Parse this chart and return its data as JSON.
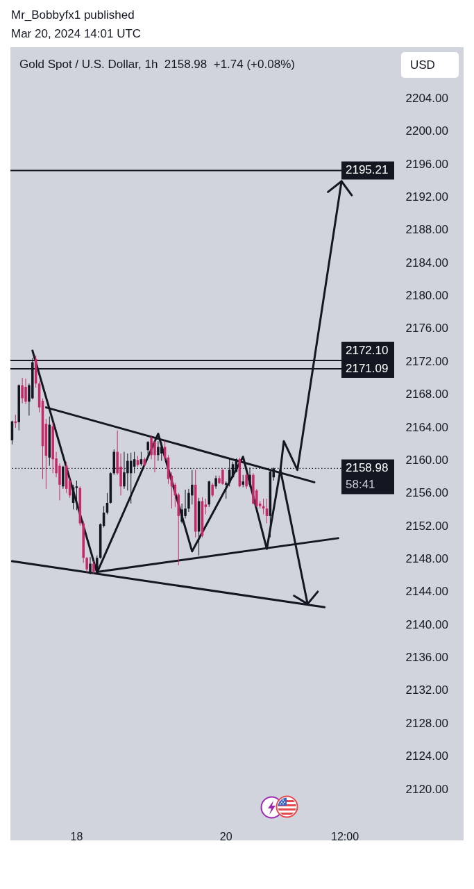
{
  "chart_data": {
    "type": "candlestick",
    "title": "Gold Spot / U.S. Dollar, 1h  2158.98  +1.74 (+0.08%)",
    "ylabel": "USD",
    "annotations": [
      "Mr_Bobbyfx1 published",
      "Mar 20, 2024 14:01 UTC",
      {
        "text": "58:41",
        "y": 2158.98
      }
    ],
    "categories": [
      null,
      null,
      null,
      null,
      null,
      null,
      null,
      null,
      null,
      null,
      null,
      null,
      null,
      null,
      null,
      null,
      null,
      null,
      null,
      "18",
      null,
      null,
      null,
      null,
      null,
      null,
      null,
      null,
      null,
      null,
      null,
      null,
      null,
      null,
      null,
      null,
      null,
      null,
      null,
      null,
      null,
      null,
      null,
      null,
      null,
      null,
      null,
      null,
      null,
      null,
      null,
      null,
      null,
      null,
      null,
      null,
      null,
      null,
      null,
      null,
      null,
      null,
      null,
      "20",
      null,
      null,
      null,
      null,
      null,
      null,
      null,
      null,
      null,
      null,
      null,
      null,
      null,
      null,
      null,
      null,
      null,
      null,
      null,
      null,
      null,
      null,
      null,
      null,
      null,
      null,
      null,
      null,
      null,
      null,
      null,
      null,
      null,
      null,
      "12:00",
      null,
      null,
      null,
      null,
      null,
      null,
      null,
      null,
      null,
      null,
      null,
      null,
      null,
      null
    ],
    "ohlc": [
      [
        2162.4,
        2164.8,
        2161.9,
        2164.7
      ],
      [
        2164.7,
        2165.5,
        2163.9,
        2164.5
      ],
      [
        2164.6,
        2169.2,
        2163.6,
        2169.1
      ],
      [
        2169.1,
        2170.0,
        2166.9,
        2167.5
      ],
      [
        2168.9,
        2169.9,
        2166.8,
        2167.1
      ],
      [
        2167.1,
        2169.3,
        2165.4,
        2169.1
      ],
      [
        2167.5,
        2172.4,
        2167.4,
        2171.9
      ],
      [
        2172.3,
        2172.7,
        2168.8,
        2169.3
      ],
      [
        2169.3,
        2169.6,
        2165.8,
        2166.4
      ],
      [
        2167.2,
        2167.5,
        2157.7,
        2161.7
      ],
      [
        2164.4,
        2165.0,
        2156.5,
        2160.5
      ],
      [
        2160.3,
        2165.3,
        2159.3,
        2164.3
      ],
      [
        2164.1,
        2164.6,
        2158.4,
        2160.1
      ],
      [
        2160.2,
        2161.0,
        2157.9,
        2158.4
      ],
      [
        2159.3,
        2159.6,
        2155.1,
        2157.0
      ],
      [
        2156.8,
        2159.3,
        2156.5,
        2159.2
      ],
      [
        2159.3,
        2159.8,
        2156.0,
        2156.5
      ],
      [
        2157.5,
        2157.9,
        2155.4,
        2155.7
      ],
      [
        2154.8,
        2157.0,
        2154.0,
        2156.7
      ],
      [
        2156.6,
        2157.5,
        2153.9,
        2156.8
      ],
      [
        2156.6,
        2156.8,
        2152.0,
        2152.3
      ],
      [
        2152.3,
        2152.6,
        2147.5,
        2148.1
      ],
      [
        2148.1,
        2148.2,
        2146.3,
        2146.7
      ],
      [
        2146.4,
        2148.2,
        2146.1,
        2147.4
      ],
      [
        2147.4,
        2147.7,
        2146.1,
        2146.4
      ],
      [
        2146.4,
        2148.4,
        2146.1,
        2148.1
      ],
      [
        2148.1,
        2152.3,
        2148.0,
        2152.2
      ],
      [
        2152.0,
        2154.4,
        2151.8,
        2153.6
      ],
      [
        2153.6,
        2156.0,
        2153.4,
        2154.8
      ],
      [
        2154.8,
        2158.5,
        2154.7,
        2158.4
      ],
      [
        2158.4,
        2161.3,
        2158.2,
        2161.0
      ],
      [
        2161.0,
        2163.6,
        2158.2,
        2158.4
      ],
      [
        2159.2,
        2160.8,
        2155.7,
        2156.8
      ],
      [
        2156.8,
        2161.0,
        2156.5,
        2158.5
      ],
      [
        2158.4,
        2160.8,
        2156.3,
        2159.9
      ],
      [
        2158.4,
        2160.9,
        2154.7,
        2159.9
      ],
      [
        2159.2,
        2161.0,
        2158.4,
        2160.1
      ],
      [
        2160.0,
        2160.5,
        2159.2,
        2159.4
      ],
      [
        2159.5,
        2161.0,
        2159.3,
        2160.1
      ],
      [
        2160.1,
        2160.3,
        2159.2,
        2159.4
      ],
      [
        2161.2,
        2162.3,
        2160.2,
        2162.2
      ],
      [
        2162.7,
        2163.0,
        2160.1,
        2160.6
      ],
      [
        2162.2,
        2162.4,
        2158.5,
        2160.6
      ],
      [
        2160.6,
        2162.3,
        2159.9,
        2161.6
      ],
      [
        2160.8,
        2162.2,
        2159.9,
        2161.6
      ],
      [
        2161.6,
        2162.3,
        2159.9,
        2160.2
      ],
      [
        2160.3,
        2160.6,
        2157.1,
        2157.7
      ],
      [
        2158.1,
        2158.5,
        2154.1,
        2156.8
      ],
      [
        2157.0,
        2157.2,
        2154.3,
        2155.7
      ],
      [
        2155.8,
        2156.0,
        2147.2,
        2153.2
      ],
      [
        2152.5,
        2154.7,
        2152.3,
        2154.0
      ],
      [
        2153.2,
        2156.4,
        2152.9,
        2154.1
      ],
      [
        2154.1,
        2156.5,
        2153.7,
        2156.0
      ],
      [
        2155.7,
        2158.8,
        2154.6,
        2157.0
      ],
      [
        2157.0,
        2158.8,
        2150.6,
        2151.3
      ],
      [
        2151.3,
        2155.4,
        2148.4,
        2155.0
      ],
      [
        2155.0,
        2155.5,
        2150.6,
        2150.8
      ],
      [
        2154.6,
        2155.3,
        2153.4,
        2154.3
      ],
      [
        2154.6,
        2157.5,
        2154.3,
        2157.4
      ],
      [
        2157.0,
        2157.2,
        2155.5,
        2155.7
      ],
      [
        2156.8,
        2158.1,
        2156.5,
        2157.8
      ],
      [
        2157.8,
        2158.1,
        2157.1,
        2157.2
      ],
      [
        2158.8,
        2158.9,
        2157.0,
        2157.1
      ],
      [
        2157.0,
        2157.4,
        2155.3,
        2157.2
      ],
      [
        2157.2,
        2160.1,
        2156.8,
        2158.8
      ],
      [
        2157.9,
        2159.8,
        2157.8,
        2159.5
      ],
      [
        2158.6,
        2160.2,
        2158.5,
        2160.1
      ],
      [
        2160.1,
        2160.3,
        2156.7,
        2156.8
      ],
      [
        2157.0,
        2158.2,
        2156.7,
        2157.4
      ],
      [
        2158.2,
        2158.4,
        2156.5,
        2156.8
      ],
      [
        2157.0,
        2159.1,
        2156.7,
        2158.2
      ],
      [
        2158.2,
        2158.4,
        2154.6,
        2154.7
      ],
      [
        2156.3,
        2156.5,
        2154.3,
        2154.4
      ],
      [
        2154.7,
        2155.0,
        2154.1,
        2154.4
      ],
      [
        2154.4,
        2155.3,
        2153.4,
        2154.1
      ],
      [
        2154.1,
        2155.3,
        2152.3,
        2153.2
      ],
      [
        2153.2,
        2158.9,
        2150.6,
        2158.6
      ],
      [
        2157.9,
        2159.1,
        2157.5,
        2158.98
      ],
      null,
      null,
      null,
      null,
      null,
      null,
      null,
      null,
      null,
      null,
      null,
      null,
      null,
      null,
      null,
      null,
      null,
      null,
      null,
      null,
      null,
      null,
      null,
      null,
      null,
      null,
      null,
      null,
      null,
      null,
      null,
      null,
      null,
      null,
      null
    ],
    "colors": [
      "#131722",
      "#c52a67",
      "#131722",
      "#c52a67",
      "#c52a67",
      "#131722",
      "#131722",
      "#c52a67",
      "#c52a67",
      "#c52a67",
      "#c52a67",
      "#131722",
      "#c52a67",
      "#c52a67",
      "#c52a67",
      "#131722",
      "#c52a67",
      "#c52a67",
      "#131722",
      "#131722",
      "#c52a67",
      "#c52a67",
      "#c52a67",
      "#131722",
      "#c52a67",
      "#131722",
      "#131722",
      "#131722",
      "#131722",
      "#131722",
      "#131722",
      "#c52a67",
      "#c52a67",
      "#131722",
      "#131722",
      "#131722",
      "#131722",
      "#c52a67",
      "#131722",
      "#c52a67",
      "#131722",
      "#c52a67",
      "#c52a67",
      "#131722",
      "#131722",
      "#c52a67",
      "#c52a67",
      "#c52a67",
      "#c52a67",
      "#c52a67",
      "#131722",
      "#131722",
      "#131722",
      "#131722",
      "#c52a67",
      "#131722",
      "#c52a67",
      "#c52a67",
      "#131722",
      "#c52a67",
      "#131722",
      "#c52a67",
      "#c52a67",
      "#131722",
      "#131722",
      "#131722",
      "#131722",
      "#c52a67",
      "#131722",
      "#c52a67",
      "#131722",
      "#c52a67",
      "#c52a67",
      "#c52a67",
      "#c52a67",
      "#c52a67",
      "#131722",
      "#131722",
      null,
      null,
      null,
      null,
      null,
      null,
      null,
      null,
      null,
      null,
      null,
      null,
      null,
      null,
      null,
      null,
      null,
      null,
      null,
      null,
      null,
      null,
      null,
      null,
      null,
      null,
      null,
      null,
      null,
      null,
      null,
      null,
      null,
      null,
      null
    ],
    "series": [
      {
        "type": "line",
        "color": "#131722",
        "values": [
          null,
          null,
          null,
          null,
          null,
          null,
          null,
          null,
          null,
          null,
          2166.4,
          null,
          null,
          null,
          null,
          null,
          null,
          null,
          null,
          null,
          null,
          null,
          null,
          null,
          null,
          null,
          null,
          null,
          null,
          null,
          null,
          null,
          null,
          null,
          null,
          null,
          null,
          null,
          null,
          null,
          null,
          null,
          null,
          null,
          null,
          null,
          null,
          null,
          null,
          null,
          null,
          null,
          null,
          null,
          null,
          null,
          null,
          null,
          null,
          null,
          null,
          null,
          null,
          null,
          null,
          null,
          null,
          null,
          null,
          null,
          null,
          null,
          null,
          null,
          null,
          null,
          null,
          null,
          null,
          null,
          null,
          null,
          null,
          null,
          null,
          null,
          null,
          null,
          null,
          2157.3,
          null,
          null,
          null,
          null,
          null,
          null,
          null,
          null,
          null,
          null,
          null,
          null,
          null,
          null,
          null,
          null,
          null,
          null,
          null,
          null,
          null,
          null,
          null
        ]
      },
      {
        "type": "line",
        "color": "#131722",
        "values": [
          null,
          null,
          null,
          null,
          null,
          null,
          null,
          null,
          null,
          null,
          null,
          null,
          null,
          null,
          null,
          null,
          null,
          null,
          null,
          null,
          null,
          null,
          null,
          null,
          null,
          2146.4,
          null,
          null,
          null,
          null,
          null,
          null,
          null,
          null,
          null,
          null,
          null,
          null,
          null,
          null,
          null,
          null,
          null,
          null,
          null,
          null,
          null,
          null,
          null,
          null,
          null,
          null,
          null,
          null,
          null,
          null,
          null,
          null,
          null,
          null,
          null,
          null,
          null,
          null,
          null,
          null,
          null,
          null,
          null,
          null,
          null,
          null,
          null,
          null,
          null,
          null,
          null,
          null,
          null,
          null,
          null,
          null,
          null,
          null,
          null,
          null,
          null,
          null,
          null,
          null,
          null,
          null,
          null,
          null,
          null,
          null,
          2150.5,
          null,
          null,
          null,
          null,
          null,
          null,
          null,
          null,
          null,
          null,
          null,
          null,
          null,
          null,
          null,
          null
        ]
      },
      {
        "type": "line",
        "color": "#131722",
        "values": [
          2147.7,
          null,
          null,
          null,
          null,
          null,
          null,
          null,
          null,
          null,
          null,
          null,
          null,
          null,
          null,
          null,
          null,
          null,
          null,
          null,
          null,
          null,
          null,
          null,
          null,
          null,
          null,
          null,
          null,
          null,
          null,
          null,
          null,
          null,
          null,
          null,
          null,
          null,
          null,
          null,
          null,
          null,
          null,
          null,
          null,
          null,
          null,
          null,
          null,
          null,
          null,
          null,
          null,
          null,
          null,
          null,
          null,
          null,
          null,
          null,
          null,
          null,
          null,
          null,
          null,
          null,
          null,
          null,
          null,
          null,
          null,
          null,
          null,
          null,
          null,
          null,
          null,
          null,
          null,
          null,
          null,
          null,
          null,
          null,
          null,
          null,
          null,
          null,
          null,
          null,
          null,
          null,
          2142.1,
          null,
          null,
          null,
          null,
          null,
          null,
          null,
          null,
          null,
          null,
          null,
          null,
          null,
          null,
          null,
          null,
          null,
          null,
          null,
          null
        ]
      },
      {
        "type": "line",
        "color": "#131722",
        "values": [
          null,
          null,
          null,
          null,
          null,
          null,
          2173.3,
          null,
          null,
          null,
          null,
          null,
          null,
          null,
          null,
          null,
          null,
          null,
          null,
          null,
          null,
          null,
          null,
          null,
          null,
          2146.3,
          null,
          null,
          null,
          null,
          null,
          null,
          null,
          null,
          null,
          null,
          null,
          null,
          null,
          null,
          null,
          null,
          null,
          2163.2,
          null,
          null,
          null,
          null,
          null,
          null,
          null,
          null,
          null,
          2148.9,
          null,
          null,
          null,
          null,
          null,
          null,
          null,
          null,
          null,
          null,
          null,
          null,
          null,
          null,
          2160.4,
          null,
          null,
          null,
          null,
          null,
          null,
          2149.2,
          null,
          null,
          null,
          2158.8,
          2162.3,
          null,
          null,
          null,
          2158.8,
          null,
          null,
          null,
          null,
          null,
          null,
          null,
          null,
          null,
          null,
          null,
          null,
          2193.9,
          null,
          null,
          null,
          null,
          null,
          null,
          null,
          null,
          null,
          null,
          null,
          null,
          null,
          null,
          null
        ]
      },
      {
        "type": "line",
        "color": "#131722",
        "values": [
          null,
          null,
          null,
          null,
          null,
          null,
          null,
          null,
          null,
          null,
          null,
          null,
          null,
          null,
          null,
          null,
          null,
          null,
          null,
          null,
          null,
          null,
          null,
          null,
          null,
          null,
          null,
          null,
          null,
          null,
          null,
          null,
          null,
          null,
          null,
          null,
          null,
          null,
          null,
          null,
          null,
          null,
          null,
          null,
          null,
          null,
          null,
          null,
          null,
          null,
          null,
          null,
          null,
          null,
          null,
          null,
          null,
          null,
          null,
          null,
          null,
          null,
          null,
          null,
          null,
          null,
          null,
          null,
          null,
          null,
          null,
          null,
          null,
          null,
          null,
          null,
          null,
          null,
          null,
          null,
          null,
          null,
          null,
          null,
          null,
          null,
          null,
          null,
          null,
          null,
          null,
          null,
          null,
          2192.6,
          null,
          null,
          null,
          2193.9,
          null,
          null,
          2192.2,
          null,
          null,
          null,
          null,
          null,
          null,
          null,
          null,
          null,
          null,
          null,
          null
        ]
      },
      {
        "type": "line",
        "color": "#131722",
        "values": [
          null,
          null,
          null,
          null,
          null,
          null,
          null,
          null,
          null,
          null,
          null,
          null,
          null,
          null,
          null,
          null,
          null,
          null,
          null,
          null,
          null,
          null,
          null,
          null,
          null,
          null,
          null,
          null,
          null,
          null,
          null,
          null,
          null,
          null,
          null,
          null,
          null,
          null,
          null,
          null,
          null,
          null,
          null,
          null,
          null,
          null,
          null,
          null,
          null,
          null,
          null,
          null,
          null,
          null,
          null,
          null,
          null,
          null,
          null,
          null,
          null,
          null,
          null,
          null,
          null,
          null,
          null,
          null,
          null,
          null,
          null,
          null,
          null,
          null,
          null,
          null,
          null,
          null,
          null,
          2158.8,
          null,
          null,
          null,
          null,
          null,
          null,
          null,
          2142.5,
          null,
          null,
          null,
          null,
          null,
          null,
          null,
          null,
          null,
          null,
          null,
          null,
          null,
          null,
          null,
          null,
          null,
          null,
          null,
          null,
          null,
          null,
          null,
          null,
          null
        ]
      },
      {
        "type": "line",
        "color": "#131722",
        "values": [
          null,
          null,
          null,
          null,
          null,
          null,
          null,
          null,
          null,
          null,
          null,
          null,
          null,
          null,
          null,
          null,
          null,
          null,
          null,
          null,
          null,
          null,
          null,
          null,
          null,
          null,
          null,
          null,
          null,
          null,
          null,
          null,
          null,
          null,
          null,
          null,
          null,
          null,
          null,
          null,
          null,
          null,
          null,
          null,
          null,
          null,
          null,
          null,
          null,
          null,
          null,
          null,
          null,
          null,
          null,
          null,
          null,
          null,
          null,
          null,
          null,
          null,
          null,
          null,
          null,
          null,
          null,
          null,
          null,
          null,
          null,
          null,
          null,
          null,
          null,
          null,
          null,
          null,
          null,
          null,
          null,
          null,
          null,
          2143.5,
          null,
          null,
          null,
          2142.5,
          null,
          null,
          2144.0,
          null,
          null,
          null,
          null,
          null,
          null,
          null,
          null,
          null,
          null,
          null,
          null,
          null,
          null,
          null,
          null,
          null,
          null,
          null,
          null,
          null,
          null
        ]
      }
    ],
    "ylim": [
      2120,
      2210.2
    ],
    "yticks": [
      {
        "value": 2120,
        "label": "2120.00"
      },
      {
        "value": 2124,
        "label": "2124.00"
      },
      {
        "value": 2128,
        "label": "2128.00"
      },
      {
        "value": 2132,
        "label": "2132.00"
      },
      {
        "value": 2136,
        "label": "2136.00"
      },
      {
        "value": 2140,
        "label": "2140.00"
      },
      {
        "value": 2144,
        "label": "2144.00"
      },
      {
        "value": 2148,
        "label": "2148.00"
      },
      {
        "value": 2152,
        "label": "2152.00"
      },
      {
        "value": 2156,
        "label": "2156.00"
      },
      {
        "value": 2160,
        "label": "2160.00"
      },
      {
        "value": 2164,
        "label": "2164.00"
      },
      {
        "value": 2168,
        "label": "2168.00"
      },
      {
        "value": 2172,
        "label": "2172.00"
      },
      {
        "value": 2176,
        "label": "2176.00"
      },
      {
        "value": 2180,
        "label": "2180.00"
      },
      {
        "value": 2184,
        "label": "2184.00"
      },
      {
        "value": 2188,
        "label": "2188.00"
      },
      {
        "value": 2192,
        "label": "2192.00"
      },
      {
        "value": 2196,
        "label": "2196.00"
      },
      {
        "value": 2200,
        "label": "2200.00"
      },
      {
        "value": 2204,
        "label": "2204.00"
      }
    ],
    "ref_lines": [
      {
        "axis": "y",
        "value": 2195.21,
        "label": "2195.21",
        "color": "#131722",
        "line_style": "solid"
      },
      {
        "axis": "y",
        "value": 2172.1,
        "label": "2172.10",
        "color": "#131722",
        "line_style": "solid"
      },
      {
        "axis": "y",
        "value": 2171.09,
        "label": "2171.09",
        "color": "#131722",
        "line_style": "solid"
      },
      {
        "axis": "y",
        "value": 2158.98,
        "label": "2158.98",
        "color": "#131722",
        "line_style": "dotted"
      }
    ]
  }
}
